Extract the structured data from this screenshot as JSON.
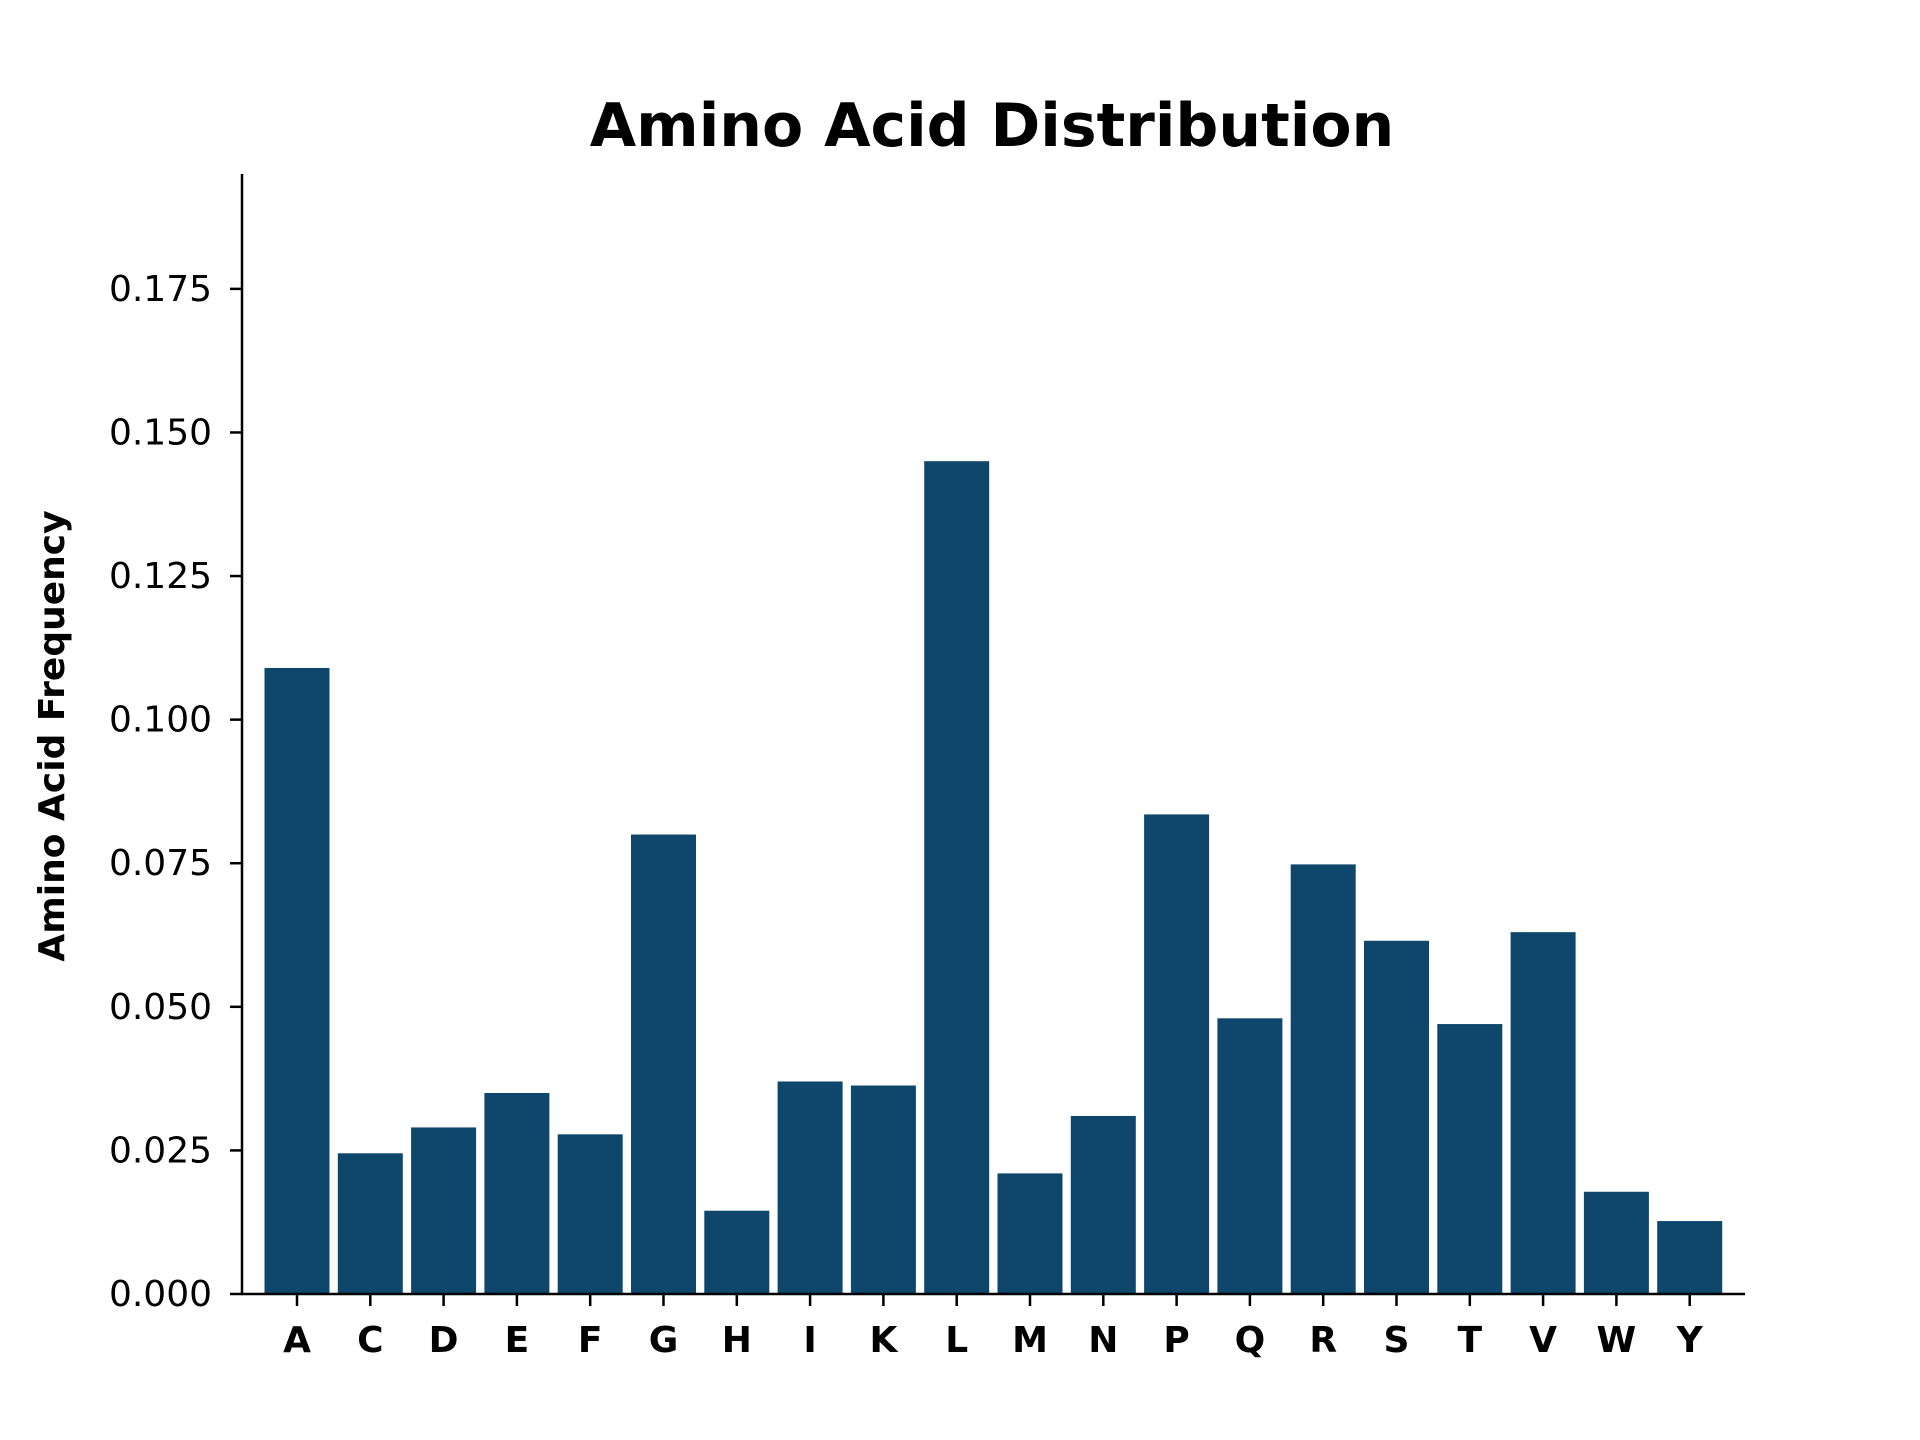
{
  "chart_data": {
    "type": "bar",
    "title": "Amino Acid Distribution",
    "xlabel": "",
    "ylabel": "Amino Acid Frequency",
    "categories": [
      "A",
      "C",
      "D",
      "E",
      "F",
      "G",
      "H",
      "I",
      "K",
      "L",
      "M",
      "N",
      "P",
      "Q",
      "R",
      "S",
      "T",
      "V",
      "W",
      "Y"
    ],
    "values": [
      0.109,
      0.0245,
      0.029,
      0.035,
      0.0278,
      0.08,
      0.0145,
      0.037,
      0.0363,
      0.145,
      0.021,
      0.031,
      0.0835,
      0.048,
      0.0748,
      0.0615,
      0.047,
      0.063,
      0.0178,
      0.0127
    ],
    "yticks": [
      "0.000",
      "0.025",
      "0.050",
      "0.075",
      "0.100",
      "0.125",
      "0.150",
      "0.175"
    ],
    "ylim": [
      0,
      0.195
    ],
    "grid": false,
    "legend": "none",
    "bar_color": "#0e476b"
  }
}
